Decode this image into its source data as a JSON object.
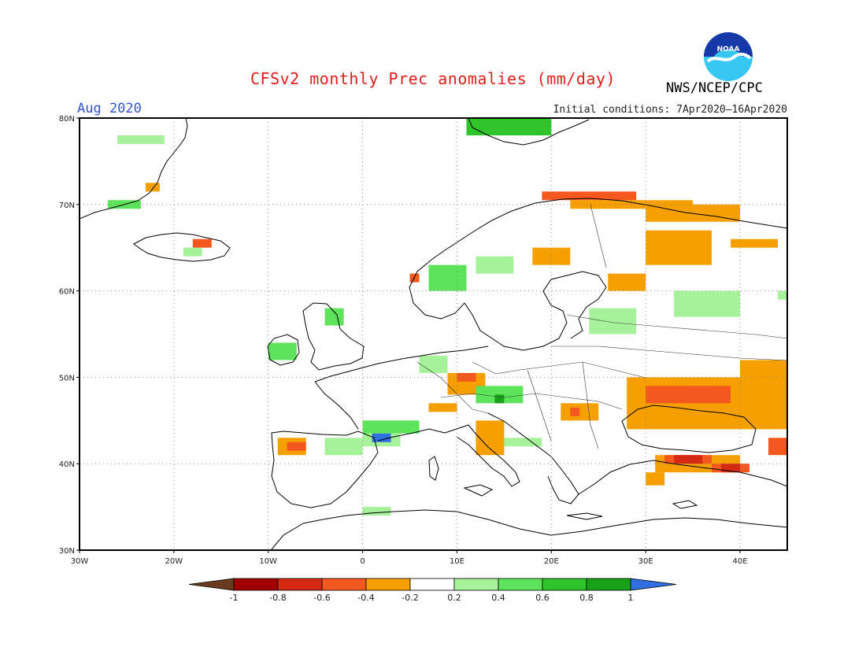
{
  "title": "CFSv2 monthly Prec anomalies (mm/day)",
  "month": "Aug 2020",
  "initial_conditions": "Initial conditions: 7Apr2020–16Apr2020",
  "agency": "NWS/NCEP/CPC",
  "logo_text": "NOAA",
  "map": {
    "lon_range": [
      -30,
      45
    ],
    "lat_range": [
      30,
      80
    ],
    "lon_ticks": [
      {
        "value": -30,
        "label": "30W"
      },
      {
        "value": -20,
        "label": "20W"
      },
      {
        "value": -10,
        "label": "10W"
      },
      {
        "value": 0,
        "label": "0"
      },
      {
        "value": 10,
        "label": "10E"
      },
      {
        "value": 20,
        "label": "20E"
      },
      {
        "value": 30,
        "label": "30E"
      },
      {
        "value": 40,
        "label": "40E"
      }
    ],
    "lat_ticks": [
      {
        "value": 30,
        "label": "30N"
      },
      {
        "value": 40,
        "label": "40N"
      },
      {
        "value": 50,
        "label": "50N"
      },
      {
        "value": 60,
        "label": "60N"
      },
      {
        "value": 70,
        "label": "70N"
      },
      {
        "value": 80,
        "label": "80N"
      }
    ],
    "grid": true
  },
  "colorbar": {
    "labels": [
      "-1",
      "-0.8",
      "-0.6",
      "-0.4",
      "-0.2",
      "0.2",
      "0.4",
      "0.6",
      "0.8",
      "1"
    ],
    "below_color": "#6b3a1e",
    "above_color": "#2f6fe0",
    "colors": [
      "#a00000",
      "#d42a14",
      "#f4581e",
      "#f5a000",
      "#ffffff",
      "#a6f29a",
      "#5ee45a",
      "#2fc42c",
      "#1aa21a"
    ]
  },
  "anomaly_cells": [
    {
      "lon": -26,
      "lat": 77,
      "w": 5,
      "h": 1,
      "v": 0.3
    },
    {
      "lon": -27,
      "lat": 69.5,
      "w": 3.5,
      "h": 1,
      "v": 0.5
    },
    {
      "lon": -23,
      "lat": 71.5,
      "w": 1.5,
      "h": 1,
      "v": -0.3
    },
    {
      "lon": -18,
      "lat": 65,
      "w": 2,
      "h": 1,
      "v": -0.5
    },
    {
      "lon": -19,
      "lat": 64,
      "w": 2,
      "h": 1,
      "v": 0.3
    },
    {
      "lon": 11,
      "lat": 78,
      "w": 9,
      "h": 2,
      "v": 0.6
    },
    {
      "lon": 19,
      "lat": 70.5,
      "w": 10,
      "h": 1,
      "v": -0.5
    },
    {
      "lon": 22,
      "lat": 69.5,
      "w": 13,
      "h": 1,
      "v": -0.3
    },
    {
      "lon": 30,
      "lat": 68,
      "w": 10,
      "h": 2,
      "v": -0.3
    },
    {
      "lon": 30,
      "lat": 63,
      "w": 7,
      "h": 4,
      "v": -0.3
    },
    {
      "lon": 39,
      "lat": 65,
      "w": 5,
      "h": 1,
      "v": -0.3
    },
    {
      "lon": 18,
      "lat": 63,
      "w": 4,
      "h": 2,
      "v": -0.3
    },
    {
      "lon": 7,
      "lat": 60,
      "w": 4,
      "h": 3,
      "v": 0.4
    },
    {
      "lon": 12,
      "lat": 62,
      "w": 4,
      "h": 2,
      "v": 0.3
    },
    {
      "lon": 5,
      "lat": 61,
      "w": 1,
      "h": 1,
      "v": -0.5
    },
    {
      "lon": 26,
      "lat": 60,
      "w": 4,
      "h": 2,
      "v": -0.3
    },
    {
      "lon": 24,
      "lat": 55,
      "w": 5,
      "h": 3,
      "v": 0.3
    },
    {
      "lon": 33,
      "lat": 57,
      "w": 7,
      "h": 3,
      "v": 0.3
    },
    {
      "lon": 44,
      "lat": 59,
      "w": 1,
      "h": 1,
      "v": 0.3
    },
    {
      "lon": -4,
      "lat": 56,
      "w": 2,
      "h": 2,
      "v": 0.4
    },
    {
      "lon": -10,
      "lat": 52,
      "w": 3,
      "h": 2,
      "v": 0.4
    },
    {
      "lon": 6,
      "lat": 50.5,
      "w": 3,
      "h": 2,
      "v": 0.3
    },
    {
      "lon": 9,
      "lat": 48,
      "w": 4,
      "h": 2.5,
      "v": -0.3
    },
    {
      "lon": 10,
      "lat": 49.5,
      "w": 2,
      "h": 1,
      "v": -0.6
    },
    {
      "lon": 12,
      "lat": 47,
      "w": 5,
      "h": 2,
      "v": 0.5
    },
    {
      "lon": 14,
      "lat": 47,
      "w": 1,
      "h": 1,
      "v": 0.8
    },
    {
      "lon": 7,
      "lat": 46,
      "w": 3,
      "h": 1,
      "v": -0.3
    },
    {
      "lon": 0,
      "lat": 43.5,
      "w": 6,
      "h": 1.5,
      "v": 0.5
    },
    {
      "lon": 0,
      "lat": 42,
      "w": 4,
      "h": 1.5,
      "v": 0.3
    },
    {
      "lon": 1,
      "lat": 42.5,
      "w": 2,
      "h": 1,
      "v": 1.1
    },
    {
      "lon": -4,
      "lat": 41,
      "w": 4,
      "h": 2,
      "v": 0.3
    },
    {
      "lon": -9,
      "lat": 41,
      "w": 3,
      "h": 2,
      "v": -0.3
    },
    {
      "lon": -8,
      "lat": 41.5,
      "w": 2,
      "h": 1,
      "v": -0.6
    },
    {
      "lon": 12,
      "lat": 41,
      "w": 3,
      "h": 4,
      "v": -0.3
    },
    {
      "lon": 15,
      "lat": 42,
      "w": 4,
      "h": 1,
      "v": 0.3
    },
    {
      "lon": 21,
      "lat": 45,
      "w": 4,
      "h": 2,
      "v": -0.3
    },
    {
      "lon": 22,
      "lat": 45.5,
      "w": 1,
      "h": 1,
      "v": -0.6
    },
    {
      "lon": 28,
      "lat": 44,
      "w": 17,
      "h": 6,
      "v": -0.3
    },
    {
      "lon": 30,
      "lat": 47,
      "w": 9,
      "h": 2,
      "v": -0.6
    },
    {
      "lon": 34,
      "lat": 48,
      "w": 3,
      "h": 1,
      "v": -0.6
    },
    {
      "lon": 40,
      "lat": 48,
      "w": 5,
      "h": 4,
      "v": -0.3
    },
    {
      "lon": 31,
      "lat": 39,
      "w": 9,
      "h": 2,
      "v": -0.3
    },
    {
      "lon": 32,
      "lat": 40,
      "w": 5,
      "h": 1,
      "v": -0.6
    },
    {
      "lon": 33,
      "lat": 40,
      "w": 3,
      "h": 1,
      "v": -0.8
    },
    {
      "lon": 37,
      "lat": 39,
      "w": 4,
      "h": 1,
      "v": -0.6
    },
    {
      "lon": 38,
      "lat": 39,
      "w": 2,
      "h": 1,
      "v": -0.8
    },
    {
      "lon": 30,
      "lat": 37.5,
      "w": 2,
      "h": 1.5,
      "v": -0.3
    },
    {
      "lon": 43,
      "lat": 41,
      "w": 2,
      "h": 2,
      "v": -0.6
    },
    {
      "lon": 0,
      "lat": 34,
      "w": 3,
      "h": 1,
      "v": 0.3
    }
  ]
}
